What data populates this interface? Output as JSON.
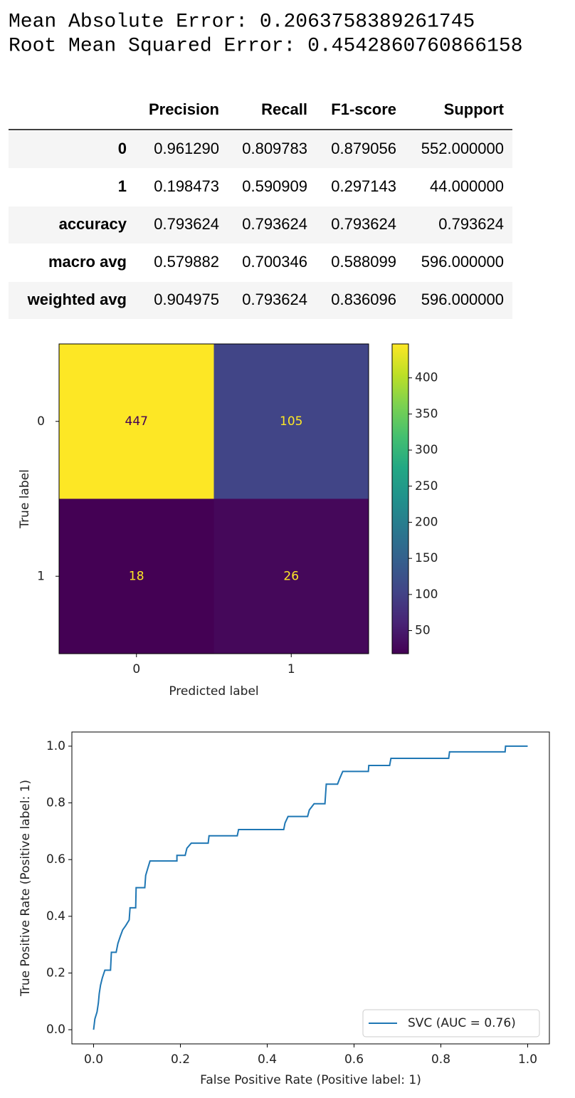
{
  "outputs": {
    "lines": [
      "Mean Absolute Error: 0.2063758389261745",
      "Root Mean Squared Error: 0.4542860760866158"
    ]
  },
  "table": {
    "columns": [
      "Precision",
      "Recall",
      "F1-score",
      "Support"
    ],
    "rows": [
      [
        "0",
        "0.961290",
        "0.809783",
        "0.879056",
        "552.000000"
      ],
      [
        "1",
        "0.198473",
        "0.590909",
        "0.297143",
        "44.000000"
      ],
      [
        "accuracy",
        "0.793624",
        "0.793624",
        "0.793624",
        "0.793624"
      ],
      [
        "macro avg",
        "0.579882",
        "0.700346",
        "0.588099",
        "596.000000"
      ],
      [
        "weighted avg",
        "0.904975",
        "0.793624",
        "0.836096",
        "596.000000"
      ]
    ]
  },
  "chart_data": [
    {
      "type": "heatmap",
      "x_label": "Predicted label",
      "y_label": "True label",
      "x_categories": [
        "0",
        "1"
      ],
      "y_categories": [
        "0",
        "1"
      ],
      "values": [
        [
          447,
          105
        ],
        [
          18,
          26
        ]
      ],
      "colormap": "viridis",
      "clim": [
        18,
        447
      ],
      "colorbar_ticks": [
        50,
        100,
        150,
        200,
        250,
        300,
        350,
        400
      ]
    },
    {
      "type": "line",
      "x_label": "False Positive Rate (Positive label: 1)",
      "y_label": "True Positive Rate (Positive label: 1)",
      "xlim": [
        -0.05,
        1.05
      ],
      "ylim": [
        -0.05,
        1.05
      ],
      "xticks": [
        {
          "value": 0,
          "label": "0.0"
        },
        0.2,
        0.4,
        0.6,
        0.8,
        {
          "value": 1,
          "label": "1.0"
        }
      ],
      "yticks": [
        {
          "value": 0,
          "label": "0.0"
        },
        0.2,
        0.4,
        0.6,
        0.8,
        {
          "value": 1,
          "label": "1.0"
        }
      ],
      "legend": "lower right",
      "series": [
        {
          "name": "SVC (AUC = 0.76)",
          "color": "#1f77b4",
          "x": [
            0,
            0.003,
            0.008,
            0.011,
            0.013,
            0.016,
            0.02,
            0.026,
            0.039,
            0.041,
            0.052,
            0.056,
            0.061,
            0.067,
            0.074,
            0.082,
            0.084,
            0.097,
            0.098,
            0.118,
            0.12,
            0.125,
            0.13,
            0.192,
            0.192,
            0.211,
            0.215,
            0.225,
            0.264,
            0.266,
            0.331,
            0.334,
            0.438,
            0.441,
            0.448,
            0.493,
            0.497,
            0.508,
            0.533,
            0.536,
            0.562,
            0.567,
            0.574,
            0.633,
            0.634,
            0.682,
            0.685,
            0.818,
            0.82,
            0.948,
            0.949,
            1.0
          ],
          "values": [
            0,
            0.038,
            0.063,
            0.094,
            0.127,
            0.157,
            0.182,
            0.21,
            0.21,
            0.273,
            0.273,
            0.304,
            0.327,
            0.352,
            0.367,
            0.387,
            0.43,
            0.43,
            0.501,
            0.501,
            0.544,
            0.57,
            0.595,
            0.595,
            0.615,
            0.615,
            0.64,
            0.658,
            0.658,
            0.684,
            0.684,
            0.706,
            0.706,
            0.729,
            0.752,
            0.752,
            0.775,
            0.797,
            0.797,
            0.866,
            0.866,
            0.886,
            0.911,
            0.911,
            0.932,
            0.932,
            0.957,
            0.957,
            0.98,
            0.98,
            1.0,
            1.0
          ]
        }
      ]
    }
  ]
}
